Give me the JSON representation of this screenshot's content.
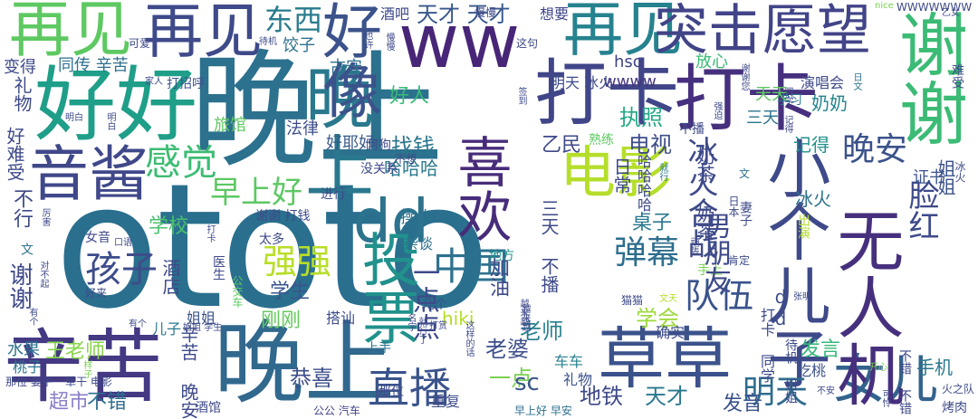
{
  "words": [
    {
      "text": "ototo",
      "color": "#2a6f8e"
    },
    {
      "text": "晚上",
      "color": "#2c718e"
    },
    {
      "text": "好好",
      "color": "#1f9e89"
    },
    {
      "text": "晚上",
      "color": "#31688e"
    },
    {
      "text": "晚上",
      "color": "#2a788e"
    },
    {
      "text": "ww",
      "color": "#482677"
    },
    {
      "text": "再见",
      "color": "#5ec962"
    },
    {
      "text": "再见",
      "color": "#3e4a89"
    },
    {
      "text": "再见",
      "color": "#26828e"
    },
    {
      "text": "辛苦",
      "color": "#443983"
    },
    {
      "text": "草草",
      "color": "#3b528b"
    },
    {
      "text": "打卡",
      "color": "#404688"
    },
    {
      "text": "打卡",
      "color": "#46307e"
    },
    {
      "text": "突击愿望",
      "color": "#414487"
    },
    {
      "text": "音酱",
      "color": "#3f4889"
    },
    {
      "text": "电影",
      "color": "#b5de2b"
    },
    {
      "text": "dd",
      "color": "#2c738e"
    },
    {
      "text": "直播",
      "color": "#3a548c"
    },
    {
      "text": "女儿",
      "color": "#33638d"
    },
    {
      "text": "东西",
      "color": "#297b8e"
    },
    {
      "text": "天才 天才",
      "color": "#38588c"
    },
    {
      "text": "感觉",
      "color": "#3dbc74"
    },
    {
      "text": "早上好",
      "color": "#5cc863"
    },
    {
      "text": "孩子",
      "color": "#3d4d8a"
    },
    {
      "text": "中国",
      "color": "#2d718e"
    },
    {
      "text": "弹幕",
      "color": "#2e6e8e"
    },
    {
      "text": "强强",
      "color": "#b8de29"
    },
    {
      "text": "队伍",
      "color": "#3a548c"
    },
    {
      "text": "晚安",
      "color": "#3b528b"
    },
    {
      "text": "找钱",
      "color": "#2a768e"
    },
    {
      "text": "执照",
      "color": "#22a884"
    },
    {
      "text": "电视",
      "color": "#3e4c8a"
    },
    {
      "text": "明天",
      "color": "#2f6c8e"
    },
    {
      "text": "好人",
      "color": "#39ba76"
    },
    {
      "text": "学生",
      "color": "#39558c"
    },
    {
      "text": "刚刚",
      "color": "#65cb5e"
    },
    {
      "text": "学会",
      "color": "#9dd93b"
    },
    {
      "text": "老婆",
      "color": "#3c4f8a"
    },
    {
      "text": "老师",
      "color": "#277f8e"
    },
    {
      "text": "恭喜",
      "color": "#3d4e8a"
    },
    {
      "text": "地铁",
      "color": "#3e4989"
    },
    {
      "text": "天才",
      "color": "#2a788e"
    },
    {
      "text": "一点",
      "color": "#7ad151"
    },
    {
      "text": "王老师",
      "color": "#86d549"
    },
    {
      "text": "超市",
      "color": "#8b7ec8"
    },
    {
      "text": "不错",
      "color": "#2e6e8e"
    },
    {
      "text": "乙民",
      "color": "#3e4a89"
    },
    {
      "text": "水果",
      "color": "#2c738e"
    },
    {
      "text": "hiki",
      "color": "#b5de2b"
    },
    {
      "text": "hso",
      "color": "#414487"
    },
    {
      "text": "wwww",
      "color": "#453781"
    },
    {
      "text": "sc",
      "color": "#3a548c"
    },
    {
      "text": "手机",
      "color": "#2a788e"
    },
    {
      "text": "学校",
      "color": "#4ac16d"
    },
    {
      "text": "操作",
      "color": "#2c728e"
    },
    {
      "text": "证书",
      "color": "#3b528b"
    },
    {
      "text": "发言",
      "color": "#35b779"
    },
    {
      "text": "发音",
      "color": "#3b528b"
    },
    {
      "text": "酒吧",
      "color": "#3e4a89"
    },
    {
      "text": "古守",
      "color": "#2e6e8e"
    },
    {
      "text": "桌子",
      "color": "#2a788e"
    },
    {
      "text": "记得",
      "color": "#21918c"
    },
    {
      "text": "冰火",
      "color": "#2c738e"
    },
    {
      "text": "奶奶",
      "color": "#25848e"
    },
    {
      "text": "放心",
      "color": "#3bbb75"
    },
    {
      "text": "同传 辛苦",
      "color": "#2e6f8e"
    },
    {
      "text": "饺子",
      "color": "#2c718e"
    },
    {
      "text": "想要",
      "color": "#3f4788"
    },
    {
      "text": "明天 冰火",
      "color": "#3e4a89"
    },
    {
      "text": "旅馆",
      "color": "#5ec962"
    },
    {
      "text": "变得",
      "color": "#3e4a89"
    },
    {
      "text": "法律",
      "color": "#3e4c8a"
    },
    {
      "text": "杂谈",
      "color": "#2c728e"
    },
    {
      "text": "好耶好",
      "color": "#38598c"
    },
    {
      "text": "三天",
      "color": "#2b748e"
    },
    {
      "text": "哈哈哈",
      "color": "#2a788e"
    },
    {
      "text": "日文",
      "color": "#2c738e"
    },
    {
      "text": "地方",
      "color": "#21918c"
    },
    {
      "text": "几个",
      "color": "#3b528b"
    },
    {
      "text": "桃子",
      "color": "#2c738e"
    },
    {
      "text": "姐姐",
      "color": "#3b528b"
    },
    {
      "text": "儿子",
      "color": "#2a788e"
    },
    {
      "text": "车车",
      "color": "#26828e"
    },
    {
      "text": "礼物",
      "color": "#3b528b"
    },
    {
      "text": "酒馆",
      "color": "#3e4a89"
    },
    {
      "text": "公公 汽车",
      "color": "#414487"
    },
    {
      "text": "早上好 早安",
      "color": "#2c728e"
    },
    {
      "text": "重复",
      "color": "#3e4a89"
    },
    {
      "text": "那位",
      "color": "#3e4c8a"
    },
    {
      "text": "确实",
      "color": "#3e4a89"
    },
    {
      "text": "吃桃",
      "color": "#3b528b"
    },
    {
      "text": "烤肉",
      "color": "#3e4a89"
    },
    {
      "text": "上手",
      "color": "#2c728e"
    },
    {
      "text": "搭讪",
      "color": "#3e4c8a"
    },
    {
      "text": "可爱",
      "color": "#3e4a89"
    },
    {
      "text": "打招呼",
      "color": "#3b528b"
    },
    {
      "text": "这句",
      "color": "#3e4a89"
    },
    {
      "text": "家人",
      "color": "#3e4a89"
    },
    {
      "text": "待机",
      "color": "#3e4a89"
    },
    {
      "text": "也许",
      "color": "#3e4a89"
    },
    {
      "text": "WWWWWWW",
      "color": "#3e4a89"
    },
    {
      "text": "nice",
      "color": "#7ad151"
    },
    {
      "text": "乙女",
      "color": "#3e4a89"
    },
    {
      "text": "演唱会",
      "color": "#3e4a89"
    },
    {
      "text": "学习",
      "color": "#2a788e"
    },
    {
      "text": "天天",
      "color": "#5ec962"
    },
    {
      "text": "午安",
      "color": "#3e4a89"
    },
    {
      "text": "谢谢您",
      "color": "#3e4a89"
    },
    {
      "text": "签到",
      "color": "#3e4a89"
    },
    {
      "text": "强迫",
      "color": "#3e4a89"
    },
    {
      "text": "同学 记得",
      "color": "#3e4a89"
    },
    {
      "text": "难受",
      "color": "#3e4a89"
    },
    {
      "text": "不播",
      "color": "#3e4a89"
    },
    {
      "text": "熟练",
      "color": "#5ec962"
    },
    {
      "text": "阿狗",
      "color": "#3e4a89"
    },
    {
      "text": "不想",
      "color": "#3e4a89"
    },
    {
      "text": "没关系",
      "color": "#3e4a89"
    },
    {
      "text": "就行",
      "color": "#2a788e"
    },
    {
      "text": "进行",
      "color": "#3e4a89"
    },
    {
      "text": "頑張",
      "color": "#3e4a89"
    },
    {
      "text": "妻子",
      "color": "#3e4a89"
    },
    {
      "text": "手上",
      "color": "#7ad151"
    },
    {
      "text": "肯定",
      "color": "#3e4a89"
    },
    {
      "text": "张明",
      "color": "#3e4a89"
    },
    {
      "text": "火之队",
      "color": "#3e4a89"
    },
    {
      "text": "开心",
      "color": "#7ad151"
    },
    {
      "text": "不安",
      "color": "#3e4a89"
    },
    {
      "text": "可怜",
      "color": "#3e4a89"
    },
    {
      "text": "好来",
      "color": "#3e4a89"
    },
    {
      "text": "猫猫",
      "color": "#3e4a89"
    },
    {
      "text": "文天",
      "color": "#b5de2b"
    },
    {
      "text": "太多",
      "color": "#3e4a89"
    },
    {
      "text": "越来越",
      "color": "#3e4a89"
    },
    {
      "text": "谢谢 打钱",
      "color": "#3e4a89"
    },
    {
      "text": "公交车",
      "color": "#5ec962"
    },
    {
      "text": "医生",
      "color": "#3e4a89"
    },
    {
      "text": "打卡",
      "color": "#3e4a89"
    },
    {
      "text": "女音",
      "color": "#3e4a89"
    },
    {
      "text": "口语",
      "color": "#3e4a89"
    },
    {
      "text": "对不起",
      "color": "#3e4a89"
    },
    {
      "text": "厉害",
      "color": "#3e4a89"
    },
    {
      "text": "有个",
      "color": "#3e4a89"
    },
    {
      "text": "姐姐 学生",
      "color": "#3e4a89"
    },
    {
      "text": "名字",
      "color": "#3e4a89"
    },
    {
      "text": "这样的话",
      "color": "#3e4a89"
    },
    {
      "text": "打赏",
      "color": "#3e4a89"
    },
    {
      "text": "就行了",
      "color": "#3e4a89"
    },
    {
      "text": "草干 电影",
      "color": "#3e4a89"
    },
    {
      "text": "那位 妻子",
      "color": "#3e4a89"
    },
    {
      "text": "样子",
      "color": "#7ad151"
    },
    {
      "text": "明白",
      "color": "#3e4a89"
    },
    {
      "text": "日本",
      "color": "#3e4a89"
    },
    {
      "text": "慢慢",
      "color": "#3e4a89"
    },
    {
      "text": "不行",
      "color": "#3e4a89"
    },
    {
      "text": "好难受",
      "color": "#3e4a89"
    },
    {
      "text": "谢谢",
      "color": "#3e4a89"
    },
    {
      "text": "礼物",
      "color": "#3e4a89"
    },
    {
      "text": "酒店",
      "color": "#3e4a89"
    },
    {
      "text": "辛苦 晚安",
      "color": "#3e4a89"
    },
    {
      "text": "一点点",
      "color": "#3e4a89"
    },
    {
      "text": "加油",
      "color": "#3e4a89"
    },
    {
      "text": "三天 不播",
      "color": "#3e4a89"
    },
    {
      "text": "出演",
      "color": "#b5de2b"
    },
    {
      "text": "日常",
      "color": "#3e4a89"
    },
    {
      "text": "哈哈哈哈",
      "color": "#3e4a89"
    },
    {
      "text": "狗子 骑士",
      "color": "#3e4a89"
    },
    {
      "text": "休息",
      "color": "#5ec962"
    },
    {
      "text": "牛奶",
      "color": "#5ec962"
    },
    {
      "text": "冰火合战",
      "color": "#3e4a89"
    },
    {
      "text": "男朋友",
      "color": "#3e4a89"
    },
    {
      "text": "奶茶 奶茶",
      "color": "#3e4a89"
    },
    {
      "text": "脸红",
      "color": "#3e4a89"
    },
    {
      "text": "小个儿子",
      "color": "#3e4a89"
    },
    {
      "text": "无人机",
      "color": "#46307e"
    },
    {
      "text": "谢谢",
      "color": "#3bbb75"
    },
    {
      "text": "喜欢",
      "color": "#472c7a"
    },
    {
      "text": "投票",
      "color": "#21918c"
    },
    {
      "text": "好像",
      "color": "#3b528b"
    },
    {
      "text": "文",
      "color": "#2c718e"
    },
    {
      "text": "dd",
      "color": "#3e4c8a"
    },
    {
      "text": "打卡 同学",
      "color": "#3e4a89"
    },
    {
      "text": "待机 姐姐",
      "color": "#3e4a89"
    },
    {
      "text": "不错 不错",
      "color": "#3e4a89"
    },
    {
      "text": "冰火",
      "color": "#3e4a89"
    }
  ]
}
